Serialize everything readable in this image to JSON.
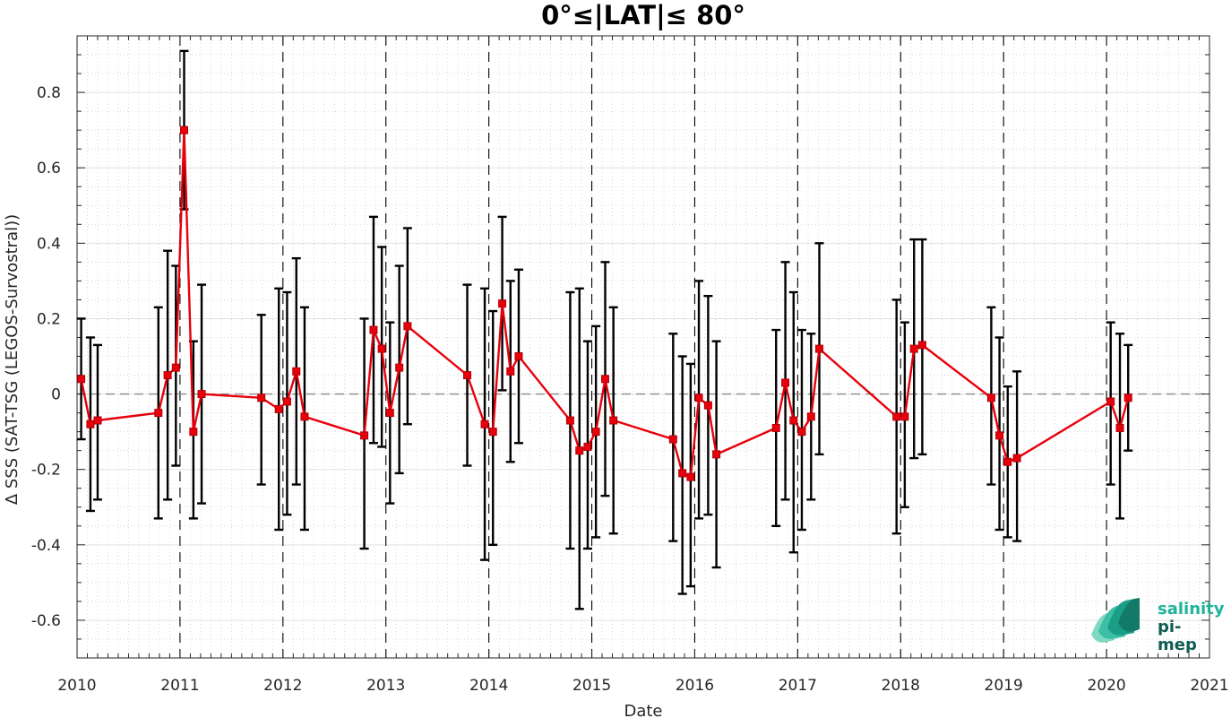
{
  "chart_data": {
    "type": "line",
    "title": "0°≤|LAT|≤ 80°",
    "xlabel": "Date",
    "ylabel": "Δ SSS (SAT-TSG (LEGOS-Survostral))",
    "xlim": [
      2010,
      2021
    ],
    "ylim": [
      -0.7,
      0.95
    ],
    "x_ticks": [
      "2010",
      "2011",
      "2012",
      "2013",
      "2014",
      "2015",
      "2016",
      "2017",
      "2018",
      "2019",
      "2020",
      "2021"
    ],
    "y_ticks": [
      "-0.6",
      "-0.4",
      "-0.2",
      "0",
      "0.2",
      "0.4",
      "0.6",
      "0.8"
    ],
    "y_tick_values": [
      -0.6,
      -0.4,
      -0.2,
      0,
      0.2,
      0.4,
      0.6,
      0.8
    ],
    "grid": "minor dotted",
    "year_boundaries": "dashed vertical lines",
    "zero_line": "dashed",
    "series": [
      {
        "color": "#e8000b",
        "marker": "square",
        "errorbar_color": "#000000",
        "x": [
          2010.04,
          2010.13,
          2010.2,
          2010.79,
          2010.88,
          2010.96,
          2011.04,
          2011.13,
          2011.21,
          2011.79,
          2011.96,
          2012.04,
          2012.13,
          2012.21,
          2012.79,
          2012.88,
          2012.96,
          2013.04,
          2013.13,
          2013.21,
          2013.79,
          2013.96,
          2014.04,
          2014.13,
          2014.21,
          2014.29,
          2014.79,
          2014.88,
          2014.96,
          2015.04,
          2015.13,
          2015.21,
          2015.79,
          2015.88,
          2015.96,
          2016.04,
          2016.13,
          2016.21,
          2016.79,
          2016.88,
          2016.96,
          2017.04,
          2017.13,
          2017.21,
          2017.96,
          2018.04,
          2018.13,
          2018.21,
          2018.88,
          2018.96,
          2019.04,
          2019.13,
          2020.04,
          2020.13,
          2020.21
        ],
        "y": [
          0.04,
          -0.08,
          -0.07,
          -0.05,
          0.05,
          0.07,
          0.7,
          -0.1,
          0.0,
          -0.01,
          -0.04,
          -0.02,
          0.06,
          -0.06,
          -0.11,
          0.17,
          0.12,
          -0.05,
          0.07,
          0.18,
          0.05,
          -0.08,
          -0.1,
          0.24,
          0.06,
          0.1,
          -0.07,
          -0.15,
          -0.14,
          -0.1,
          0.04,
          -0.07,
          -0.12,
          -0.21,
          -0.22,
          -0.01,
          -0.03,
          -0.16,
          -0.09,
          0.03,
          -0.07,
          -0.1,
          -0.06,
          0.12,
          -0.06,
          -0.06,
          0.12,
          0.13,
          -0.01,
          -0.11,
          -0.18,
          -0.17,
          -0.02,
          -0.09,
          -0.01
        ],
        "err_low": [
          -0.12,
          -0.31,
          -0.28,
          -0.33,
          -0.28,
          -0.19,
          0.49,
          -0.33,
          -0.29,
          -0.24,
          -0.36,
          -0.32,
          -0.24,
          -0.36,
          -0.41,
          -0.13,
          -0.14,
          -0.29,
          -0.21,
          -0.08,
          -0.19,
          -0.44,
          -0.4,
          0.01,
          -0.18,
          -0.13,
          -0.41,
          -0.57,
          -0.41,
          -0.38,
          -0.27,
          -0.37,
          -0.39,
          -0.53,
          -0.51,
          -0.33,
          -0.32,
          -0.46,
          -0.35,
          -0.28,
          -0.42,
          -0.36,
          -0.28,
          -0.16,
          -0.37,
          -0.3,
          -0.17,
          -0.16,
          -0.24,
          -0.36,
          -0.38,
          -0.39,
          -0.24,
          -0.33,
          -0.15
        ],
        "err_high": [
          0.2,
          0.15,
          0.13,
          0.23,
          0.38,
          0.34,
          0.91,
          0.14,
          0.29,
          0.21,
          0.28,
          0.27,
          0.36,
          0.23,
          0.2,
          0.47,
          0.39,
          0.19,
          0.34,
          0.44,
          0.29,
          0.28,
          0.22,
          0.47,
          0.3,
          0.33,
          0.27,
          0.28,
          0.14,
          0.18,
          0.35,
          0.23,
          0.16,
          0.1,
          0.08,
          0.3,
          0.26,
          0.14,
          0.17,
          0.35,
          0.27,
          0.17,
          0.16,
          0.4,
          0.25,
          0.19,
          0.41,
          0.41,
          0.23,
          0.15,
          0.02,
          0.06,
          0.19,
          0.16,
          0.13
        ]
      }
    ]
  },
  "logo": {
    "line1": "salinity",
    "line2": "pi-mep",
    "color1": "#1fb39a",
    "color2": "#0e5c52"
  }
}
